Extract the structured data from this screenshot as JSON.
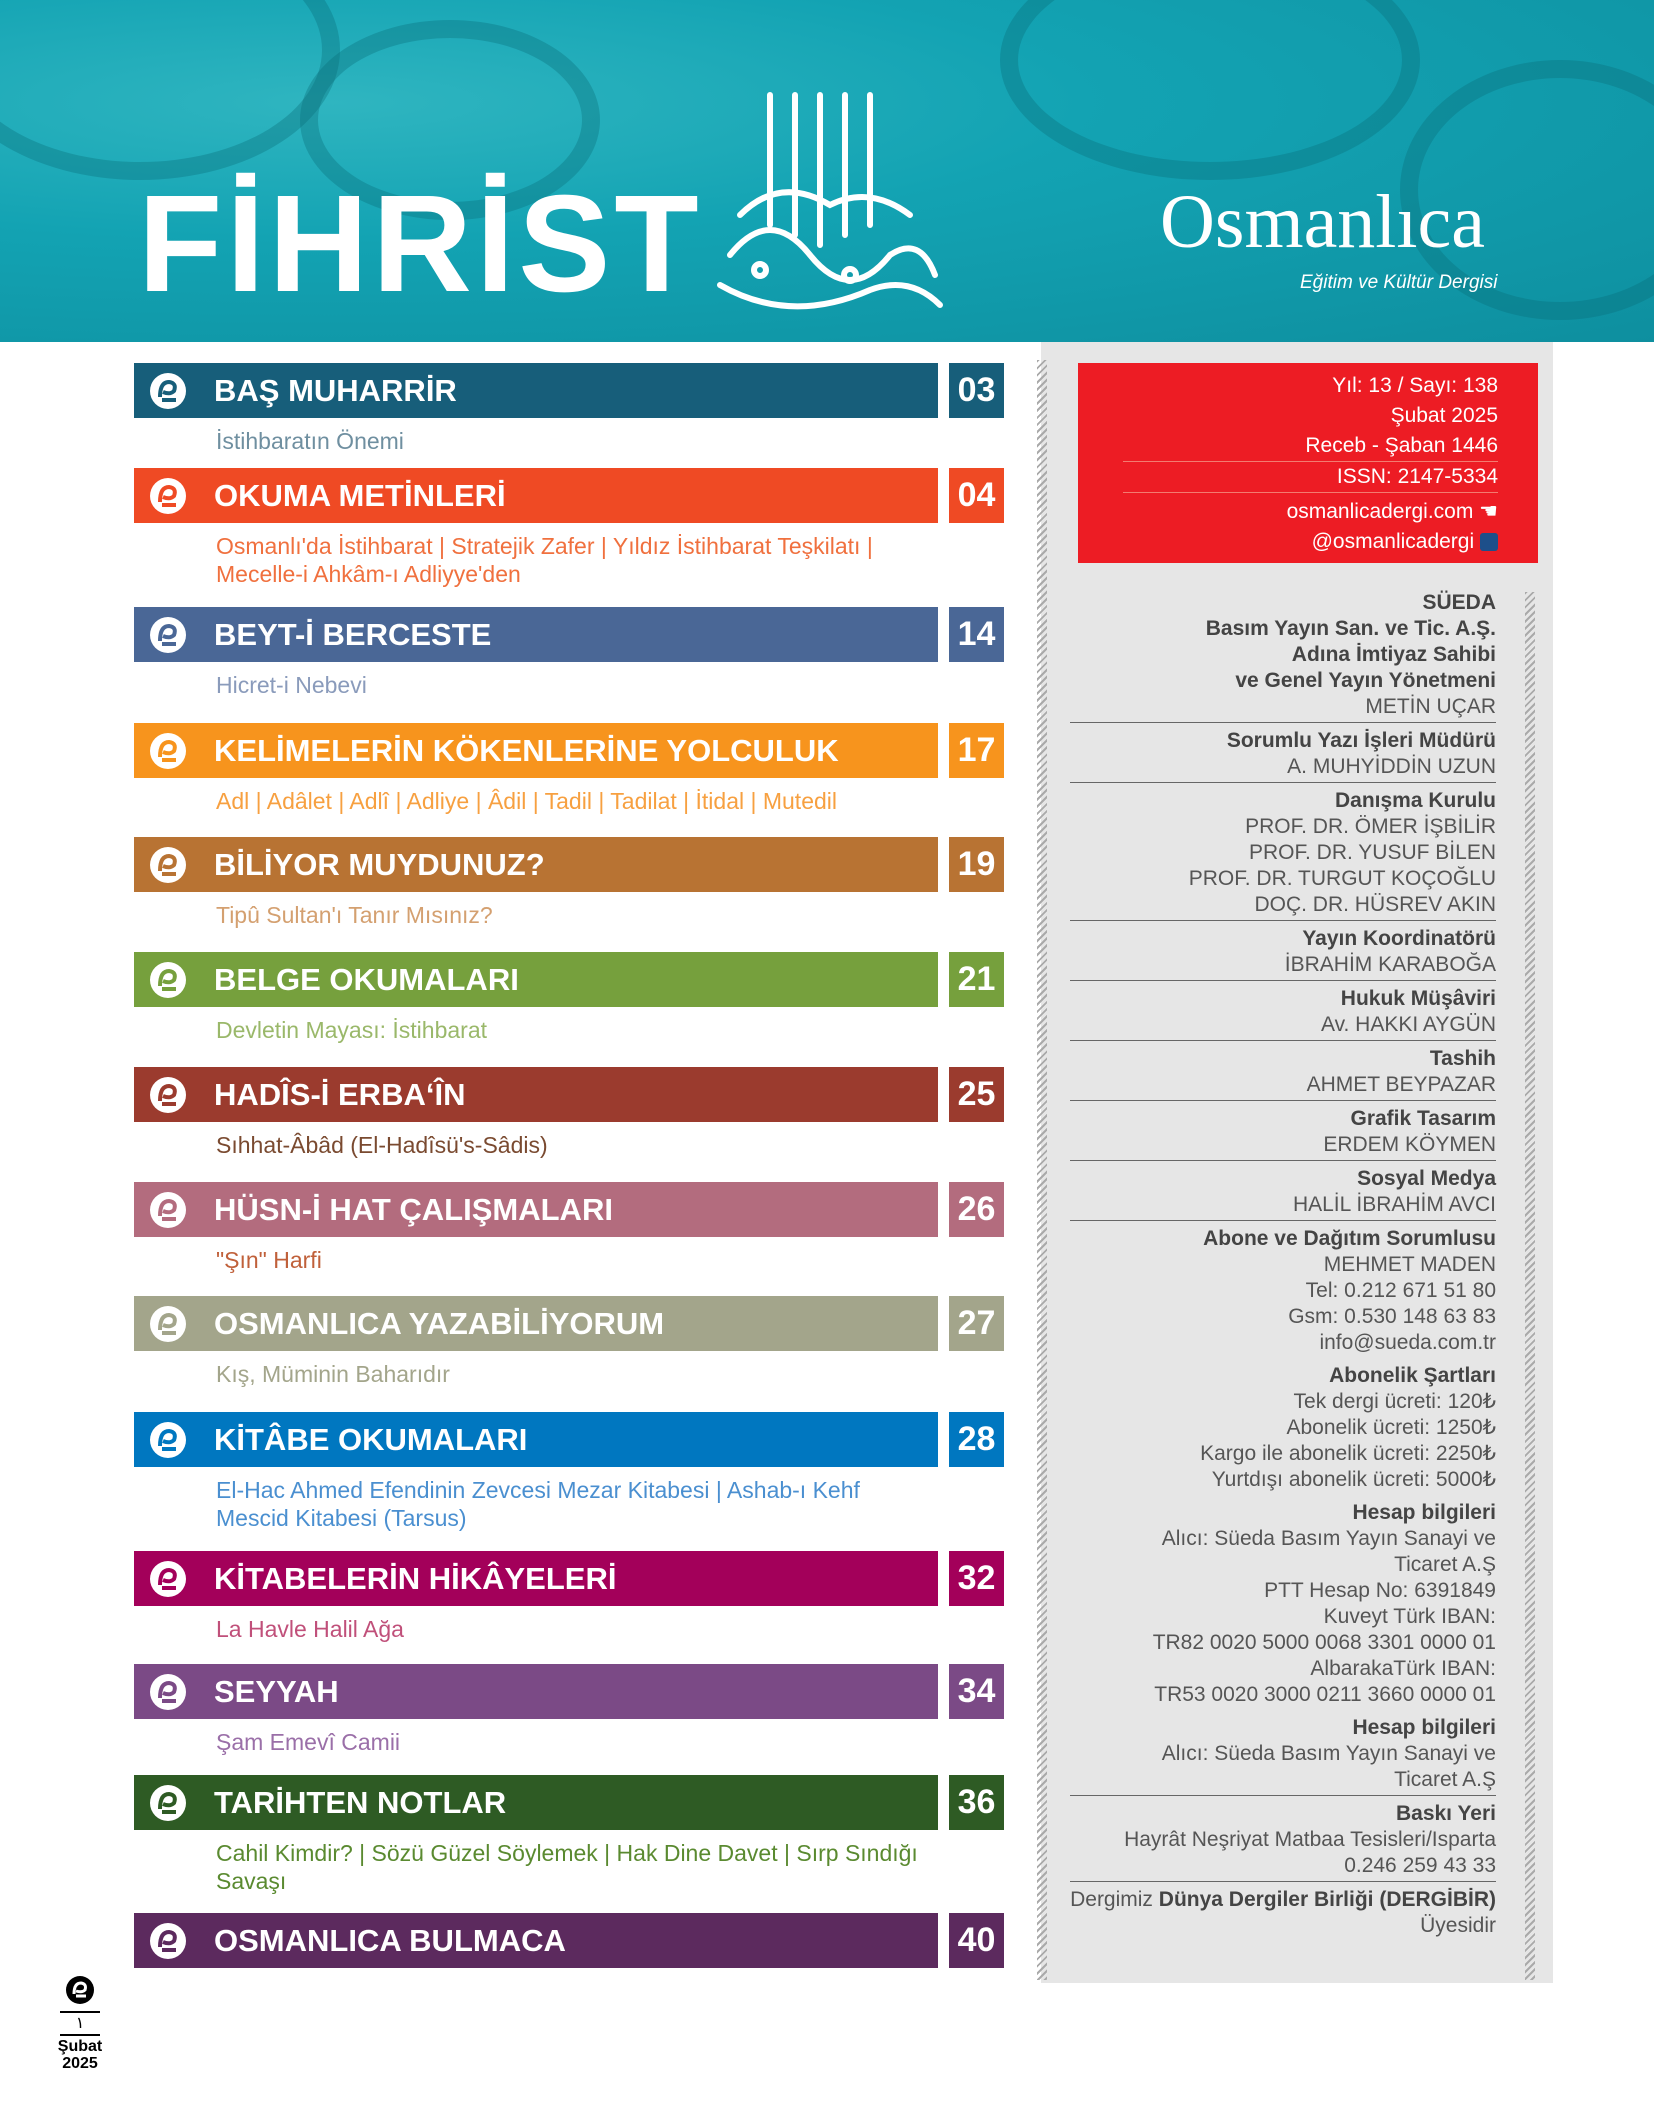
{
  "header": {
    "title": "FİHRİST",
    "logo": "Osmanlıca",
    "logo_subtitle": "Eğitim ve Kültür Dergisi"
  },
  "sections": [
    {
      "title": "BAŞ MUHARRİR",
      "page": "03",
      "subtitle": "İstihbaratın Önemi",
      "color": "#175e7a",
      "subcolor": "#6f8fa0"
    },
    {
      "title": "OKUMA METİNLERİ",
      "page": "04",
      "subtitle": "Osmanlı'da İstihbarat | Stratejik Zafer | Yıldız İstihbarat Teşkilatı | Mecelle-i Ahkâm-ı Adliyye'den",
      "color": "#ef4a24",
      "subcolor": "#f0703e"
    },
    {
      "title": "BEYT-İ BERCESTE",
      "page": "14",
      "subtitle": "Hicret-i Nebevi",
      "color": "#4a6796",
      "subcolor": "#8a9bbb"
    },
    {
      "title": "KELİMELERİN KÖKENLERİNE YOLCULUK",
      "page": "17",
      "subtitle": "Adl | Adâlet | Adlî | Adliye | Âdil | Tadil | Tadilat | İtidal | Mutedil",
      "color": "#f7941d",
      "subcolor": "#f7a040"
    },
    {
      "title": "BİLİYOR MUYDUNUZ?",
      "page": "19",
      "subtitle": "Tipû Sultan'ı Tanır Mısınız?",
      "color": "#b87333",
      "subcolor": "#d4a070"
    },
    {
      "title": "BELGE OKUMALARI",
      "page": "21",
      "subtitle": "Devletin Mayası: İstihbarat",
      "color": "#76a03d",
      "subcolor": "#9ab86a"
    },
    {
      "title": "HADÎS-İ ERBAʻÎN",
      "page": "25",
      "subtitle": "Sıhhat-Âbâd (El-Hadîsü's-Sâdis)",
      "color": "#9b3b2e",
      "subcolor": "#7a4a30"
    },
    {
      "title": "HÜSN-İ HAT ÇALIŞMALARI",
      "page": "26",
      "subtitle": "\"Şın\" Harfi",
      "color": "#b36c7e",
      "subcolor": "#c0603a"
    },
    {
      "title": "OSMANLICA YAZABİLİYORUM",
      "page": "27",
      "subtitle": "Kış, Müminin Baharıdır",
      "color": "#a3a58b",
      "subcolor": "#a3a58b"
    },
    {
      "title": "KİTÂBE OKUMALARI",
      "page": "28",
      "subtitle": "El-Hac Ahmed Efendinin Zevcesi Mezar Kitabesi | Ashab-ı Kehf Mescid Kitabesi (Tarsus)",
      "color": "#0077c0",
      "subcolor": "#4a8fd0"
    },
    {
      "title": "KİTABELERİN HİKÂYELERİ",
      "page": "32",
      "subtitle": "La Havle Halil Ağa",
      "color": "#a3005a",
      "subcolor": "#c0507a"
    },
    {
      "title": "SEYYAH",
      "page": "34",
      "subtitle": "Şam Emevî Camii",
      "color": "#7b4a86",
      "subcolor": "#9a6fa8"
    },
    {
      "title": "TARİHTEN NOTLAR",
      "page": "36",
      "subtitle": "Cahil Kimdir? | Sözü Güzel Söylemek | Hak Dine Davet | Sırp Sındığı Savaşı",
      "color": "#2e5b24",
      "subcolor": "#5a8a30"
    },
    {
      "title": "OSMANLICA BULMACA",
      "page": "40",
      "subtitle": "",
      "color": "#5c2a5e",
      "subcolor": "#5c2a5e"
    }
  ],
  "issue": {
    "year_issue": "Yıl: 13 / Sayı: 138",
    "month": "Şubat 2025",
    "hijri": "Receb - Şaban 1446",
    "issn": "ISSN: 2147-5334",
    "website": "osmanlicadergi.com",
    "social": "@osmanlicadergi",
    "website_icon": "pointing-hand-icon",
    "social_icon": "twitter-bird-icon"
  },
  "credits": [
    {
      "lines": [
        {
          "t": "SÜEDA",
          "b": true
        },
        {
          "t": "Basım Yayın San. ve Tic. A.Ş.",
          "b": true
        },
        {
          "t": "Adına İmtiyaz Sahibi",
          "b": true
        },
        {
          "t": "ve Genel Yayın Yönetmeni",
          "b": true
        },
        {
          "t": "METİN UÇAR"
        }
      ],
      "rule": true
    },
    {
      "lines": [
        {
          "t": "Sorumlu Yazı İşleri Müdürü",
          "b": true
        },
        {
          "t": "A. MUHYİDDİN UZUN"
        }
      ],
      "rule": true
    },
    {
      "lines": [
        {
          "t": "Danışma Kurulu",
          "b": true
        },
        {
          "t": "PROF. DR. ÖMER İŞBİLİR"
        },
        {
          "t": "PROF. DR. YUSUF BİLEN"
        },
        {
          "t": "PROF. DR. TURGUT KOÇOĞLU"
        },
        {
          "t": "DOÇ. DR. HÜSREV AKIN"
        }
      ],
      "rule": true
    },
    {
      "lines": [
        {
          "t": "Yayın Koordinatörü",
          "b": true
        },
        {
          "t": "İBRAHİM KARABOĞA"
        }
      ],
      "rule": true
    },
    {
      "lines": [
        {
          "t": "Hukuk Müşâviri",
          "b": true
        },
        {
          "t": "Av. HAKKI AYGÜN"
        }
      ],
      "rule": true
    },
    {
      "lines": [
        {
          "t": "Tashih",
          "b": true
        },
        {
          "t": "AHMET BEYPAZAR"
        }
      ],
      "rule": true
    },
    {
      "lines": [
        {
          "t": "Grafik Tasarım",
          "b": true
        },
        {
          "t": "ERDEM KÖYMEN"
        }
      ],
      "rule": true
    },
    {
      "lines": [
        {
          "t": "Sosyal Medya",
          "b": true
        },
        {
          "t": "HALİL İBRAHİM AVCI"
        }
      ],
      "rule": true
    },
    {
      "lines": [
        {
          "t": "Abone ve Dağıtım Sorumlusu",
          "b": true
        },
        {
          "t": "MEHMET MADEN"
        },
        {
          "t": "Tel: 0.212 671 51 80"
        },
        {
          "t": "Gsm: 0.530 148 63 83"
        },
        {
          "t": "info@sueda.com.tr"
        }
      ],
      "rule": false
    },
    {
      "lines": [
        {
          "t": "Abonelik Şartları",
          "b": true
        },
        {
          "t": "Tek dergi ücreti:   120₺"
        },
        {
          "t": "Abonelik ücreti: 1250₺"
        },
        {
          "t": "Kargo ile abonelik ücreti: 2250₺"
        },
        {
          "t": "Yurtdışı abonelik ücreti: 5000₺"
        }
      ],
      "rule": false
    },
    {
      "lines": [
        {
          "t": "Hesap bilgileri",
          "b": true
        },
        {
          "t": "Alıcı: Süeda Basım Yayın Sanayi ve"
        },
        {
          "t": "Ticaret A.Ş"
        },
        {
          "t": "PTT Hesap No: 6391849"
        },
        {
          "t": "Kuveyt Türk IBAN:"
        },
        {
          "t": "TR82 0020 5000 0068 3301 0000 01"
        },
        {
          "t": "AlbarakaTürk IBAN:"
        },
        {
          "t": "TR53 0020 3000 0211 3660 0000 01"
        }
      ],
      "rule": false
    },
    {
      "lines": [
        {
          "t": "Hesap bilgileri",
          "b": true
        },
        {
          "t": "Alıcı: Süeda Basım Yayın Sanayi ve"
        },
        {
          "t": "Ticaret A.Ş"
        }
      ],
      "rule": true
    },
    {
      "lines": [
        {
          "t": "Baskı Yeri",
          "b": true
        },
        {
          "t": "Hayrât Neşriyat Matbaa Tesisleri/Isparta"
        },
        {
          "t": "0.246 259 43 33"
        }
      ],
      "rule": true
    }
  ],
  "membership": {
    "prefix": "Dergimiz ",
    "bold": "Dünya Dergiler Birliği (DERGİBİR)",
    "suffix": "Üyesidir"
  },
  "footer": {
    "page_arabic": "١",
    "month": "Şubat",
    "year": "2025"
  }
}
